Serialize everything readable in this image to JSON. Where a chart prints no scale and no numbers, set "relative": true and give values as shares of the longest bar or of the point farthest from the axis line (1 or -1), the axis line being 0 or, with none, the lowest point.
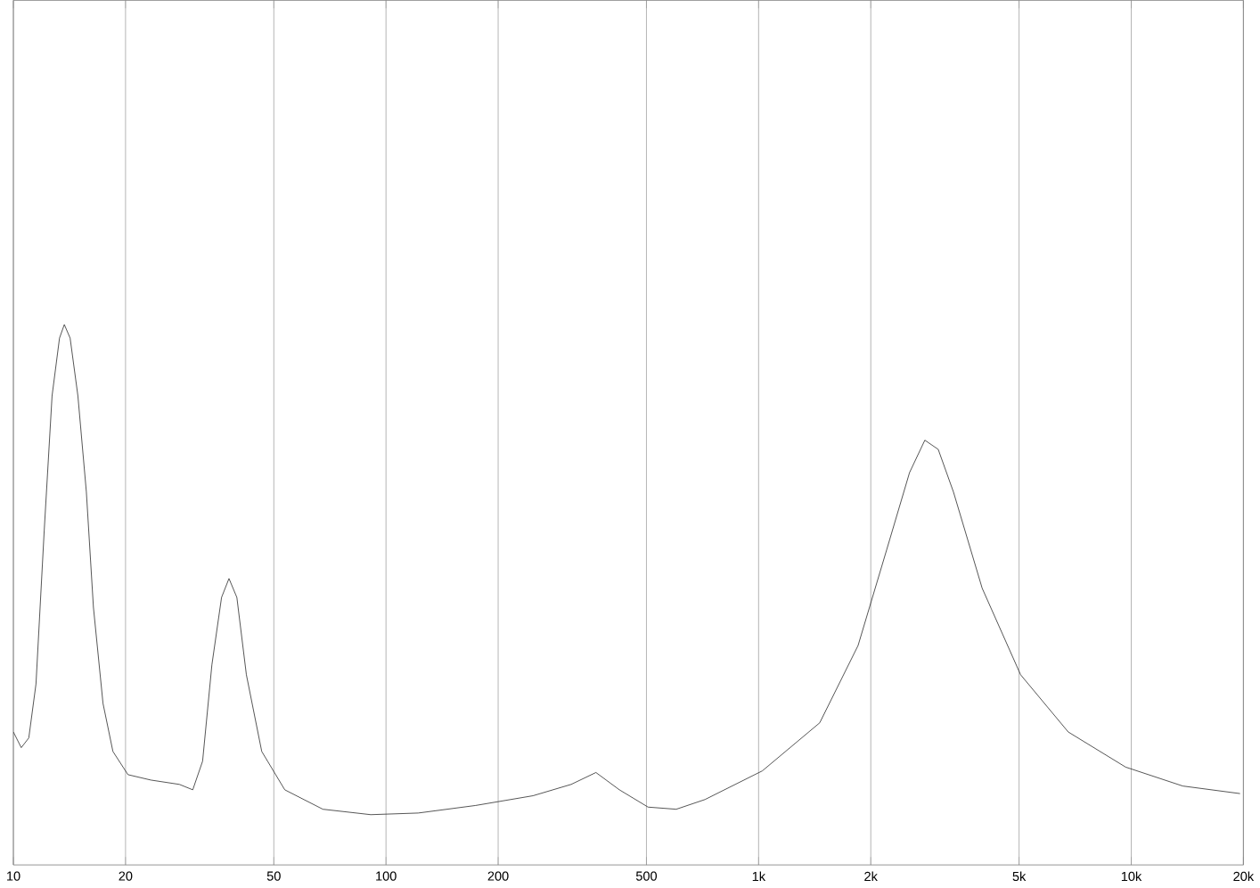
{
  "chart_data": {
    "type": "line",
    "relative": true,
    "log": "x",
    "grid": "x",
    "marker": "none",
    "line_style": "solid",
    "color": "#333333",
    "xlim": [
      10,
      20000
    ],
    "xticks": [
      10,
      20,
      50,
      100,
      200,
      500,
      {
        "value": 1000,
        "label": "1k"
      },
      {
        "value": 2000,
        "label": "2k"
      },
      {
        "value": 5000,
        "label": "5k"
      },
      {
        "value": 10000,
        "label": "10k"
      },
      {
        "value": 20000,
        "label": "20k"
      }
    ],
    "x": [
      10,
      10.5,
      11.0,
      11.5,
      12.1,
      12.7,
      13.3,
      13.7,
      14.2,
      14.9,
      15.7,
      16.4,
      17.4,
      18.5,
      20.3,
      23.4,
      27.9,
      30.3,
      32.2,
      34.1,
      36.2,
      37.9,
      39.8,
      42.2,
      46.4,
      53.5,
      67.7,
      91,
      122,
      174,
      248,
      314,
      366,
      423,
      505,
      601,
      718,
      1023,
      1459,
      1849,
      2208,
      2541,
      2793,
      3034,
      3334,
      3981,
      5047,
      6776,
      9660,
      13750,
      19590
    ],
    "values": [
      0.246,
      0.217,
      0.235,
      0.335,
      0.619,
      0.868,
      0.975,
      1,
      0.975,
      0.868,
      0.69,
      0.477,
      0.299,
      0.21,
      0.167,
      0.157,
      0.149,
      0.139,
      0.192,
      0.37,
      0.495,
      0.53,
      0.495,
      0.352,
      0.21,
      0.139,
      0.103,
      0.093,
      0.096,
      0.11,
      0.128,
      0.149,
      0.171,
      0.139,
      0.107,
      0.103,
      0.121,
      0.174,
      0.263,
      0.406,
      0.584,
      0.726,
      0.786,
      0.769,
      0.69,
      0.512,
      0.352,
      0.246,
      0.181,
      0.146,
      0.132
    ]
  }
}
